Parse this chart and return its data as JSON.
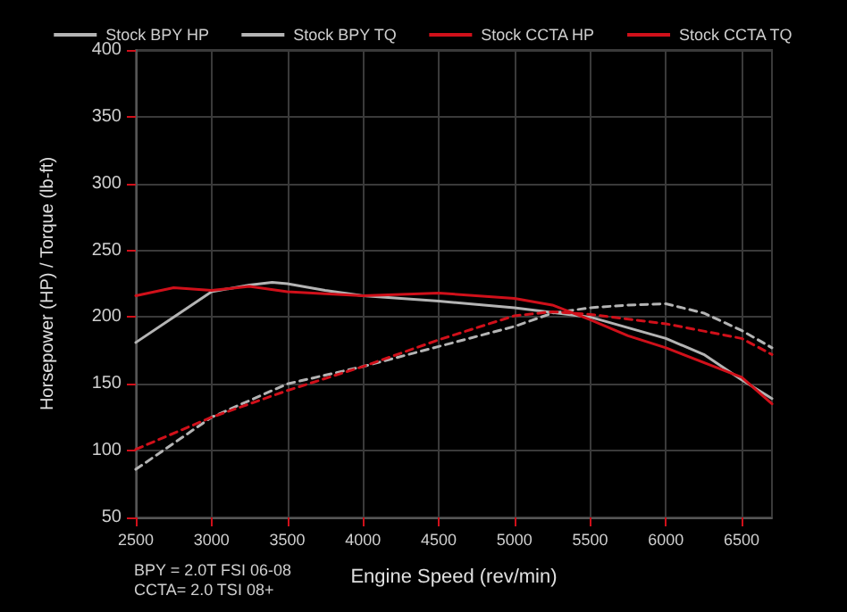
{
  "chart_data": {
    "type": "line",
    "xlabel": "Engine Speed (rev/min)",
    "ylabel": "Horsepower (HP) / Torque (lb-ft)",
    "annotations": [
      "BPY = 2.0T FSI 06-08",
      "CCTA= 2.0 TSI 08+"
    ],
    "xlim": [
      2500,
      6700
    ],
    "xticks": [
      2500,
      3000,
      3500,
      4000,
      4500,
      5000,
      5500,
      6000,
      6500
    ],
    "ylim": [
      50,
      400
    ],
    "yticks": [
      50,
      100,
      150,
      200,
      250,
      300,
      350,
      400
    ],
    "grid": true,
    "legend": "top",
    "marker": "none",
    "series": [
      {
        "name": "Stock BPY HP",
        "color": "#b4b4b4",
        "line_style": "dashed",
        "x": [
          2500,
          3000,
          3500,
          4000,
          4500,
          5000,
          5250,
          5500,
          5750,
          6000,
          6250,
          6500,
          6700
        ],
        "values": [
          86,
          125,
          150,
          163,
          178,
          193,
          203,
          207,
          209,
          210,
          203,
          190,
          177
        ]
      },
      {
        "name": "Stock BPY TQ",
        "color": "#b4b4b4",
        "line_style": "solid",
        "x": [
          2500,
          2750,
          3000,
          3250,
          3400,
          3500,
          3750,
          4000,
          4500,
          5000,
          5500,
          6000,
          6250,
          6500,
          6700
        ],
        "values": [
          181,
          200,
          219,
          224,
          226,
          225,
          220,
          216,
          212,
          207,
          200,
          184,
          172,
          153,
          139
        ]
      },
      {
        "name": "Stock CCTA HP",
        "color": "#d0101a",
        "line_style": "dashed",
        "x": [
          2500,
          3000,
          3500,
          4000,
          4500,
          5000,
          5250,
          5500,
          6000,
          6500,
          6700
        ],
        "values": [
          101,
          125,
          145,
          163,
          183,
          201,
          204,
          202,
          195,
          184,
          172
        ]
      },
      {
        "name": "Stock CCTA TQ",
        "color": "#d0101a",
        "line_style": "solid",
        "x": [
          2500,
          2750,
          3000,
          3250,
          3500,
          4000,
          4500,
          5000,
          5250,
          5500,
          5750,
          6000,
          6500,
          6700
        ],
        "values": [
          216,
          222,
          220,
          223,
          219,
          216,
          218,
          214,
          209,
          198,
          186,
          177,
          155,
          135
        ]
      }
    ]
  }
}
